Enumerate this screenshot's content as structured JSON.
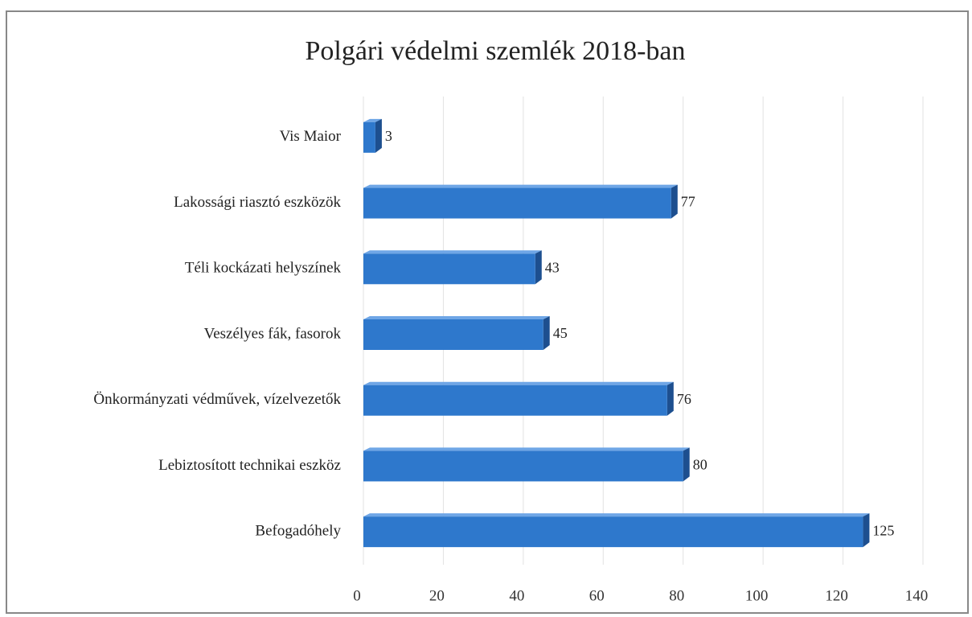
{
  "chart_data": {
    "type": "bar",
    "orientation": "horizontal",
    "title": "Polgári védelmi szemlék 2018-ban",
    "categories": [
      "Vis Maior",
      "Lakossági riasztó eszközök",
      "Téli kockázati helyszínek",
      "Veszélyes fák, fasorok",
      "Önkormányzati védművek, vízelvezetők",
      "Lebiztosított technikai eszköz",
      "Befogadóhely"
    ],
    "values": [
      3,
      77,
      43,
      45,
      76,
      80,
      125
    ],
    "color": "#2e78cc",
    "xlim": [
      0,
      140
    ],
    "xticks": [
      0,
      20,
      40,
      60,
      80,
      100,
      120,
      140
    ],
    "grid": true
  }
}
